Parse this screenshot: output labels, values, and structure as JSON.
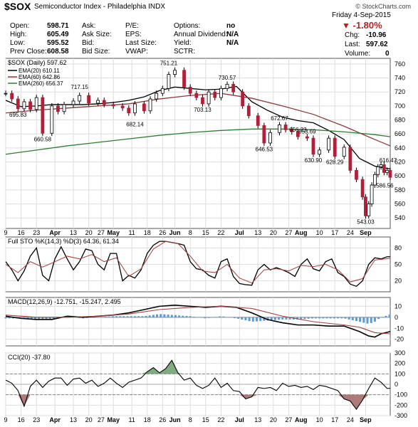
{
  "header": {
    "symbol": "$SOX",
    "name": "Semiconductor Index - Philadelphia  INDX",
    "watermark": "© StockCharts.com",
    "date": "Friday  4-Sep-2015",
    "change_pct": "-1.80%",
    "chg_label": "Chg:",
    "chg_value": "-10.96",
    "last_label": "Last:",
    "last_value": "597.62",
    "volume_label": "Volume:",
    "volume_value": "0",
    "fields": [
      {
        "label": "Open:",
        "value": "598.71"
      },
      {
        "label": "High:",
        "value": "605.49"
      },
      {
        "label": "Low:",
        "value": "595.52"
      },
      {
        "label": "Prev Close:",
        "value": "608.58"
      },
      {
        "label": "Ask:",
        "value": ""
      },
      {
        "label": "Ask Size:",
        "value": ""
      },
      {
        "label": "Bid:",
        "value": ""
      },
      {
        "label": "Bid Size:",
        "value": ""
      },
      {
        "label": "P/E:",
        "value": ""
      },
      {
        "label": "EPS:",
        "value": ""
      },
      {
        "label": "Last Size:",
        "value": ""
      },
      {
        "label": "VWAP:",
        "value": ""
      },
      {
        "label": "Options:",
        "value": "no"
      },
      {
        "label": "Annual Dividend:",
        "value": "N/A"
      },
      {
        "label": "Yield:",
        "value": "N/A"
      },
      {
        "label": "SCTR:",
        "value": ""
      }
    ]
  },
  "chart_data": [
    {
      "type": "line",
      "title": "$SOX (Daily) 597.62",
      "series": [
        {
          "name": "EMA(20) 610.11",
          "color": "#000000",
          "x": [
            0,
            5,
            10,
            15,
            20,
            25,
            30,
            35,
            40,
            45,
            50,
            55,
            60,
            65,
            70,
            75,
            80,
            85,
            90,
            95,
            100,
            105,
            110,
            115,
            120,
            125
          ],
          "y": [
            708,
            699,
            700,
            702,
            702,
            702,
            703,
            705,
            708,
            713,
            722,
            727,
            725,
            723,
            724,
            728,
            706,
            694,
            684,
            679,
            676,
            665,
            652,
            625,
            614,
            610
          ]
        },
        {
          "name": "EMA(60) 642.86",
          "color": "#8b3a3a",
          "x": [
            0,
            10,
            20,
            30,
            40,
            50,
            60,
            70,
            80,
            90,
            100,
            110,
            120,
            125
          ],
          "y": [
            690,
            694,
            697,
            700,
            703,
            710,
            715,
            718,
            711,
            700,
            688,
            671,
            652,
            643
          ]
        },
        {
          "name": "EMA(260) 656.37",
          "color": "#2e7d32",
          "x": [
            0,
            10,
            20,
            30,
            40,
            50,
            60,
            70,
            80,
            90,
            100,
            110,
            120,
            125
          ],
          "y": [
            631,
            637,
            643,
            648,
            653,
            658,
            662,
            665,
            667,
            667,
            666,
            663,
            659,
            656
          ]
        },
        {
          "name": "Price",
          "color": "#000000",
          "x": [
            0,
            2,
            4,
            6,
            8,
            10,
            12,
            15,
            17,
            19,
            22,
            24,
            27,
            30,
            32,
            35,
            38,
            40,
            42,
            45,
            47,
            49,
            51,
            53,
            55,
            58,
            60,
            62,
            64,
            66,
            68,
            70,
            72,
            74,
            77,
            79,
            82,
            84,
            86,
            89,
            91,
            93,
            95,
            98,
            100,
            102,
            105,
            107,
            110,
            112,
            114,
            116,
            117,
            118,
            119,
            120,
            121,
            122,
            123,
            124,
            125
          ],
          "y": [
            718,
            710,
            696,
            706,
            695,
            712,
            661,
            700,
            692,
            702,
            707,
            715,
            704,
            708,
            702,
            700,
            697,
            690,
            703,
            693,
            710,
            718,
            725,
            745,
            751,
            727,
            718,
            712,
            703,
            720,
            712,
            725,
            731,
            720,
            700,
            686,
            672,
            647,
            662,
            673,
            666,
            663,
            656,
            654,
            631,
            637,
            654,
            628,
            641,
            608,
            595,
            570,
            543,
            560,
            587,
            602,
            613,
            616,
            605,
            608,
            598
          ]
        }
      ],
      "annotations": [
        "751.21",
        "730.57",
        "717.15",
        "703.13",
        "695.83",
        "682.14",
        "672.67",
        "660.58",
        "656.23",
        "653.69",
        "646.53",
        "630.90",
        "628.29",
        "616.47",
        "586.56",
        "543.03"
      ],
      "ylim": [
        525,
        768
      ],
      "yticks": [
        540,
        560,
        580,
        600,
        620,
        640,
        660,
        680,
        700,
        720,
        740,
        760
      ]
    },
    {
      "type": "line",
      "title": "Full STO %K(14,3) %D(3) 64.36, 61.34",
      "series": [
        {
          "name": "%K",
          "color": "#000000",
          "x": [
            0,
            2,
            4,
            6,
            8,
            10,
            12,
            14,
            16,
            18,
            20,
            22,
            24,
            26,
            28,
            30,
            32,
            34,
            36,
            38,
            40,
            42,
            44,
            46,
            48,
            50,
            52,
            54,
            56,
            58,
            60,
            62,
            64,
            66,
            68,
            70,
            72,
            74,
            76,
            78,
            80,
            82,
            84,
            86,
            88,
            90,
            92,
            94,
            96,
            98,
            100,
            102,
            104,
            106,
            108,
            110,
            112,
            114,
            116,
            118,
            120,
            122,
            124,
            125
          ],
          "y": [
            55,
            40,
            20,
            38,
            65,
            80,
            30,
            20,
            60,
            82,
            60,
            40,
            55,
            78,
            75,
            50,
            40,
            70,
            70,
            20,
            30,
            25,
            40,
            70,
            85,
            92,
            92,
            90,
            88,
            85,
            55,
            42,
            40,
            30,
            25,
            55,
            60,
            28,
            15,
            13,
            12,
            40,
            50,
            40,
            44,
            40,
            35,
            28,
            50,
            60,
            42,
            38,
            55,
            60,
            35,
            28,
            14,
            10,
            20,
            50,
            62,
            60,
            64,
            64
          ]
        },
        {
          "name": "%D",
          "color": "#a04040",
          "x": [
            0,
            4,
            8,
            12,
            16,
            20,
            24,
            28,
            32,
            36,
            40,
            44,
            48,
            52,
            56,
            60,
            64,
            68,
            72,
            76,
            80,
            84,
            88,
            92,
            96,
            100,
            104,
            108,
            112,
            116,
            120,
            125
          ],
          "y": [
            50,
            35,
            55,
            45,
            55,
            65,
            60,
            68,
            55,
            62,
            28,
            42,
            78,
            92,
            88,
            65,
            38,
            35,
            50,
            25,
            16,
            40,
            42,
            38,
            48,
            46,
            50,
            40,
            18,
            24,
            58,
            61
          ]
        }
      ],
      "ylim": [
        0,
        100
      ],
      "yticks": [
        20,
        50,
        80
      ]
    },
    {
      "type": "line",
      "title": "MACD(12,26,9) -12.751, -15.247, 2.495",
      "series": [
        {
          "name": "MACD",
          "color": "#000000",
          "x": [
            0,
            5,
            10,
            15,
            20,
            25,
            30,
            35,
            40,
            45,
            50,
            55,
            60,
            65,
            70,
            75,
            80,
            85,
            90,
            95,
            100,
            105,
            110,
            115,
            118,
            120,
            122,
            125
          ],
          "y": [
            1,
            -1,
            -2,
            -2,
            1,
            0,
            1,
            2,
            4,
            7,
            10,
            11,
            10,
            9,
            10,
            9,
            4,
            -2,
            -5,
            -7,
            -7,
            -8,
            -8,
            -13,
            -17,
            -18,
            -15,
            -13
          ]
        },
        {
          "name": "Signal",
          "color": "#a04040",
          "x": [
            0,
            10,
            20,
            30,
            40,
            50,
            60,
            70,
            80,
            90,
            100,
            110,
            115,
            120,
            125
          ],
          "y": [
            2,
            0,
            0,
            1,
            3,
            7,
            9,
            10,
            8,
            1,
            -4,
            -7,
            -9,
            -14,
            -15
          ]
        },
        {
          "name": "Histogram",
          "color": "#5a9bd5",
          "x": [
            0,
            5,
            10,
            15,
            20,
            25,
            30,
            35,
            40,
            45,
            50,
            55,
            60,
            65,
            70,
            75,
            80,
            85,
            90,
            95,
            100,
            105,
            110,
            115,
            118,
            120,
            122,
            125
          ],
          "y": [
            -1,
            -1,
            -2,
            -2,
            1,
            -1,
            0,
            1,
            1,
            1,
            3,
            2,
            1,
            -1,
            1,
            -1,
            -4,
            -3,
            -2,
            -2,
            -1,
            -1,
            -1,
            -4,
            -6,
            -4,
            0,
            2.5
          ]
        }
      ],
      "ylim": [
        -26,
        18
      ],
      "yticks": [
        -20,
        -10,
        0,
        10
      ]
    },
    {
      "type": "line",
      "title": "CCI(20) -37.80",
      "series": [
        {
          "name": "CCI(20)",
          "color": "#000000",
          "x": [
            0,
            2,
            4,
            6,
            8,
            10,
            12,
            14,
            16,
            18,
            20,
            22,
            24,
            26,
            28,
            30,
            32,
            34,
            36,
            38,
            40,
            42,
            44,
            46,
            48,
            50,
            52,
            54,
            56,
            58,
            60,
            62,
            64,
            66,
            68,
            70,
            72,
            74,
            76,
            78,
            80,
            82,
            84,
            86,
            88,
            90,
            92,
            94,
            96,
            98,
            100,
            102,
            104,
            106,
            108,
            110,
            112,
            114,
            116,
            118,
            120,
            122,
            124,
            125
          ],
          "y": [
            40,
            10,
            -60,
            -210,
            -20,
            40,
            -30,
            30,
            60,
            60,
            -10,
            50,
            60,
            10,
            40,
            -20,
            10,
            60,
            10,
            -30,
            20,
            40,
            60,
            120,
            160,
            110,
            150,
            230,
            110,
            40,
            60,
            -10,
            -40,
            -10,
            60,
            -30,
            10,
            -60,
            -70,
            -140,
            -120,
            -30,
            -40,
            -30,
            -60,
            10,
            -20,
            -10,
            -30,
            -20,
            -50,
            -10,
            -20,
            -40,
            -60,
            -140,
            -160,
            -240,
            -150,
            -40,
            60,
            20,
            -40,
            -38
          ]
        }
      ],
      "ylim": [
        -300,
        300
      ],
      "yticks": [
        -300,
        -200,
        -100,
        0,
        100,
        200,
        300
      ]
    }
  ],
  "x_axis": {
    "ticks": [
      {
        "x": 0,
        "label": "9"
      },
      {
        "x": 5,
        "label": "16"
      },
      {
        "x": 10,
        "label": "23"
      },
      {
        "x": 16,
        "label": "Apr"
      },
      {
        "x": 22,
        "label": "13"
      },
      {
        "x": 27,
        "label": "20"
      },
      {
        "x": 31,
        "label": "27"
      },
      {
        "x": 35,
        "label": "May"
      },
      {
        "x": 41,
        "label": "11"
      },
      {
        "x": 46,
        "label": "18"
      },
      {
        "x": 51,
        "label": "26"
      },
      {
        "x": 55,
        "label": "Jun"
      },
      {
        "x": 60,
        "label": "8"
      },
      {
        "x": 65,
        "label": "15"
      },
      {
        "x": 70,
        "label": "22"
      },
      {
        "x": 76,
        "label": "Jul"
      },
      {
        "x": 82,
        "label": "13"
      },
      {
        "x": 87,
        "label": "20"
      },
      {
        "x": 92,
        "label": "27"
      },
      {
        "x": 96,
        "label": "Aug"
      },
      {
        "x": 102,
        "label": "10"
      },
      {
        "x": 107,
        "label": "17"
      },
      {
        "x": 112,
        "label": "24"
      },
      {
        "x": 117,
        "label": "Sep"
      }
    ]
  }
}
